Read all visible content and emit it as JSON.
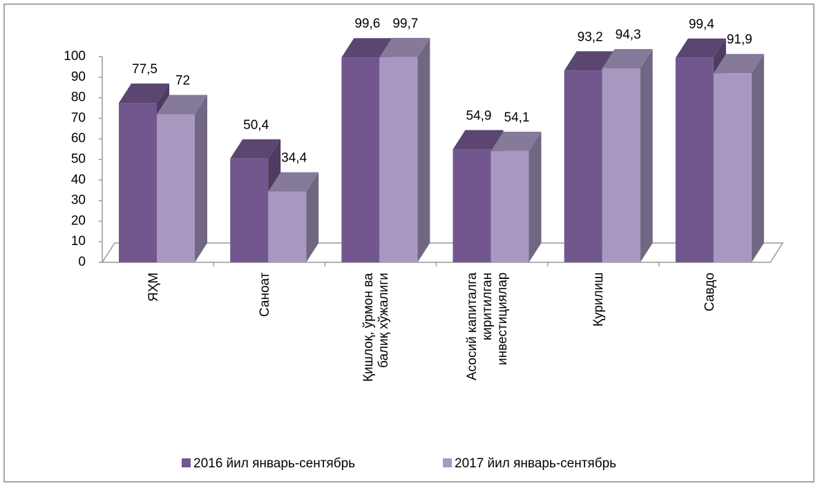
{
  "chart_data": {
    "type": "bar3d",
    "categories": [
      "ЯҲМ",
      "Саноат",
      "Қишлоқ, ўрмон ва\nбалиқ хўжалиги",
      "Асосий капиталга\nкиритилган\nинвестициялар",
      "Қурилиш",
      "Савдо"
    ],
    "series": [
      {
        "name": "2016 йил январь-сентябрь",
        "color": "#72578f",
        "values": [
          77.5,
          50.4,
          99.6,
          54.9,
          93.2,
          99.4
        ],
        "value_labels": [
          "77,5",
          "50,4",
          "99,6",
          "54,9",
          "93,2",
          "99,4"
        ]
      },
      {
        "name": "2017 йил январь-сентябрь",
        "color": "#a898c0",
        "values": [
          72,
          34.4,
          99.7,
          54.1,
          94.3,
          91.9
        ],
        "value_labels": [
          "72",
          "34,4",
          "99,7",
          "54,1",
          "94,3",
          "91,9"
        ]
      }
    ],
    "ylim": [
      0,
      100
    ],
    "yticks": [
      0,
      10,
      20,
      30,
      40,
      50,
      60,
      70,
      80,
      90,
      100
    ],
    "grid": false,
    "legend": "bottom"
  }
}
